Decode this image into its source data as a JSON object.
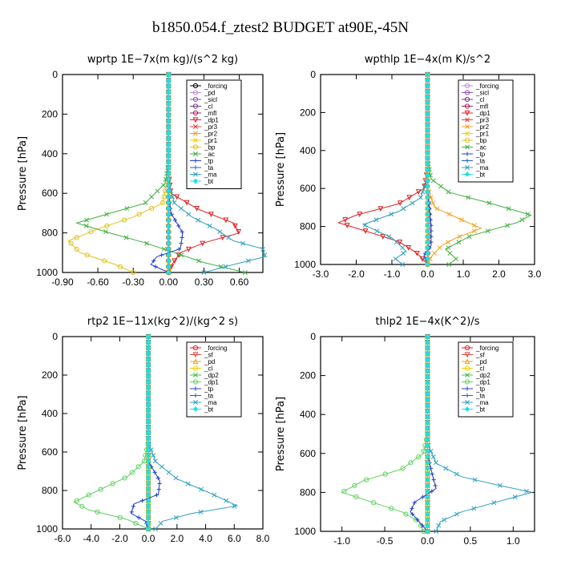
{
  "figure_title": "b1850.054.f_ztest2  BUDGET at90E,-45N",
  "chart_data": [
    {
      "type": "line",
      "title": "wprtp   1E−7x(m kg)/(s^2 kg)",
      "ylabel": "Pressure [hPa]",
      "ylim": [
        1000,
        0
      ],
      "yticks": [
        0,
        200,
        400,
        600,
        800,
        1000
      ],
      "xlim": [
        -0.9,
        0.8
      ],
      "xticks": [
        -0.9,
        -0.6,
        -0.3,
        0.0,
        0.3,
        0.6
      ],
      "xtick_labels": [
        "-0.90",
        "-0.60",
        "-0.30",
        "0.00",
        "0.30",
        "0.60"
      ],
      "legend_position": "top-right",
      "series": [
        {
          "name": "_forcing",
          "color": "#000000",
          "marker": "o",
          "p": [
            0,
            1000
          ],
          "v": [
            0,
            0
          ]
        },
        {
          "name": "_pd",
          "color": "#c08ad8",
          "marker": "o",
          "p": [
            0,
            1000
          ],
          "v": [
            0,
            0
          ]
        },
        {
          "name": "_sicl",
          "color": "#9050b0",
          "marker": "o",
          "p": [
            0,
            1000
          ],
          "v": [
            0,
            0
          ]
        },
        {
          "name": "_cl",
          "color": "#7a3b8f",
          "marker": "o",
          "p": [
            0,
            1000
          ],
          "v": [
            0,
            0
          ]
        },
        {
          "name": "_mfl",
          "color": "#a0205a",
          "marker": "o",
          "p": [
            0,
            1000
          ],
          "v": [
            0,
            0
          ]
        },
        {
          "name": "_dp1",
          "color": "#e02020",
          "marker": "v",
          "p": [
            0,
            500,
            600,
            680,
            750,
            800,
            850,
            900,
            950,
            1000
          ],
          "v": [
            0,
            0,
            0.02,
            0.25,
            0.55,
            0.6,
            0.3,
            0.1,
            0.04,
            0
          ]
        },
        {
          "name": "_pr3",
          "color": "#e04040",
          "marker": "x",
          "p": [
            0,
            1000
          ],
          "v": [
            0,
            0
          ]
        },
        {
          "name": "_pr2",
          "color": "#f0a020",
          "marker": "x",
          "p": [
            0,
            1000
          ],
          "v": [
            0,
            0
          ]
        },
        {
          "name": "_pr1",
          "color": "#f0d000",
          "marker": "x",
          "p": [
            0,
            1000
          ],
          "v": [
            0,
            0
          ]
        },
        {
          "name": "_bp",
          "color": "#e0c020",
          "marker": "o",
          "p": [
            0,
            500,
            650,
            720,
            780,
            840,
            900,
            960,
            1000
          ],
          "v": [
            0,
            0,
            -0.05,
            -0.3,
            -0.6,
            -0.85,
            -0.75,
            -0.45,
            -0.3
          ]
        },
        {
          "name": "_ac",
          "color": "#40b040",
          "marker": "x",
          "p": [
            0,
            450,
            550,
            650,
            710,
            750,
            800,
            850,
            900,
            950,
            1000
          ],
          "v": [
            0,
            0,
            -0.03,
            -0.2,
            -0.55,
            -0.78,
            -0.5,
            -0.2,
            0.05,
            0.3,
            0.65
          ]
        },
        {
          "name": "_tp",
          "color": "#2040d0",
          "marker": "+",
          "p": [
            0,
            600,
            700,
            800,
            880,
            920,
            960,
            1000
          ],
          "v": [
            0,
            0,
            0.02,
            0.12,
            0.1,
            -0.1,
            -0.15,
            0
          ]
        },
        {
          "name": "_ta",
          "color": "#2060c0",
          "marker": "+",
          "p": [
            0,
            1000
          ],
          "v": [
            0,
            0
          ]
        },
        {
          "name": "_ma",
          "color": "#30a0c0",
          "marker": "x",
          "p": [
            0,
            550,
            650,
            720,
            780,
            840,
            880,
            920,
            960,
            1000
          ],
          "v": [
            0,
            0,
            0.05,
            0.2,
            0.4,
            0.55,
            0.8,
            0.82,
            0.55,
            0.3
          ]
        },
        {
          "name": "_bt",
          "color": "#20e0e0",
          "marker": "d",
          "p": [
            0,
            1000
          ],
          "v": [
            0,
            0
          ]
        }
      ]
    },
    {
      "type": "line",
      "title": "wpthlp   1E−4x(m K)/s^2",
      "ylabel": "Pressure [hPa]",
      "ylim": [
        1000,
        0
      ],
      "yticks": [
        0,
        200,
        400,
        600,
        800,
        1000
      ],
      "xlim": [
        -3.0,
        3.0
      ],
      "xticks": [
        -3.0,
        -2.0,
        -1.0,
        0.0,
        1.0,
        2.0,
        3.0
      ],
      "xtick_labels": [
        "-3.0",
        "-2.0",
        "-1.0",
        "0.0",
        "1.0",
        "2.0",
        "3.0"
      ],
      "legend_position": "top-right",
      "series": [
        {
          "name": "_forcing",
          "color": "#c08ad8",
          "marker": "o",
          "p": [
            0,
            1000
          ],
          "v": [
            0,
            0
          ]
        },
        {
          "name": "_sicl",
          "color": "#9050b0",
          "marker": "o",
          "p": [
            0,
            1000
          ],
          "v": [
            0,
            0
          ]
        },
        {
          "name": "_cl",
          "color": "#7a3b8f",
          "marker": "o",
          "p": [
            0,
            600,
            800,
            1000
          ],
          "v": [
            0,
            0,
            0.05,
            0
          ]
        },
        {
          "name": "_mfl",
          "color": "#a0205a",
          "marker": "o",
          "p": [
            0,
            1000
          ],
          "v": [
            0,
            0
          ]
        },
        {
          "name": "_dp1",
          "color": "#e02020",
          "marker": "v",
          "p": [
            0,
            500,
            600,
            680,
            740,
            780,
            820,
            880,
            940,
            1000
          ],
          "v": [
            0,
            0,
            -0.1,
            -0.8,
            -2.0,
            -2.5,
            -1.8,
            -0.8,
            -0.3,
            0
          ]
        },
        {
          "name": "_pr3",
          "color": "#e04040",
          "marker": "x",
          "p": [
            0,
            1000
          ],
          "v": [
            0,
            0
          ]
        },
        {
          "name": "_pr2",
          "color": "#f0a020",
          "marker": "x",
          "p": [
            0,
            600,
            700,
            760,
            810,
            860,
            900,
            960,
            1000
          ],
          "v": [
            0,
            0,
            0.2,
            0.9,
            1.5,
            0.8,
            0.4,
            0.1,
            0
          ]
        },
        {
          "name": "_pr1",
          "color": "#f0d000",
          "marker": "x",
          "p": [
            0,
            1000
          ],
          "v": [
            0,
            0
          ]
        },
        {
          "name": "_bp",
          "color": "#e0c020",
          "marker": "o",
          "p": [
            0,
            1000
          ],
          "v": [
            0,
            0
          ]
        },
        {
          "name": "_ac",
          "color": "#40b040",
          "marker": "x",
          "p": [
            0,
            450,
            550,
            620,
            680,
            740,
            780,
            850,
            920,
            970,
            1000
          ],
          "v": [
            0,
            0,
            0.1,
            0.6,
            1.8,
            2.9,
            2.5,
            1.2,
            0.5,
            0.8,
            0.6
          ]
        },
        {
          "name": "_tp",
          "color": "#2040d0",
          "marker": "+",
          "p": [
            0,
            600,
            700,
            800,
            900,
            950,
            1000
          ],
          "v": [
            0,
            0,
            0.05,
            0.1,
            0.1,
            -0.1,
            0
          ]
        },
        {
          "name": "_ta",
          "color": "#2060c0",
          "marker": "+",
          "p": [
            0,
            1000
          ],
          "v": [
            0,
            0
          ]
        },
        {
          "name": "_ma",
          "color": "#30a0c0",
          "marker": "x",
          "p": [
            0,
            550,
            650,
            720,
            790,
            860,
            930,
            970,
            1000
          ],
          "v": [
            0,
            0,
            -0.2,
            -0.8,
            -1.8,
            -1.0,
            -0.6,
            -0.9,
            -0.7
          ]
        },
        {
          "name": "_bt",
          "color": "#20e0e0",
          "marker": "d",
          "p": [
            0,
            1000
          ],
          "v": [
            0,
            0
          ]
        }
      ]
    },
    {
      "type": "line",
      "title": "rtp2   1E−11x(kg^2)/(kg^2 s)",
      "ylabel": "Pressure [hPa]",
      "ylim": [
        1000,
        0
      ],
      "yticks": [
        0,
        200,
        400,
        600,
        800,
        1000
      ],
      "xlim": [
        -6.0,
        8.0
      ],
      "xticks": [
        -6.0,
        -4.0,
        -2.0,
        0.0,
        2.0,
        4.0,
        6.0,
        8.0
      ],
      "xtick_labels": [
        "-6.0",
        "-4.0",
        "-2.0",
        "0.0",
        "2.0",
        "4.0",
        "6.0",
        "8.0"
      ],
      "legend_position": "top-right",
      "series": [
        {
          "name": "_forcing",
          "color": "#e02020",
          "marker": "o",
          "p": [
            0,
            1000
          ],
          "v": [
            0,
            0
          ]
        },
        {
          "name": "_sf",
          "color": "#e04040",
          "marker": "v",
          "p": [
            0,
            1000
          ],
          "v": [
            0,
            0
          ]
        },
        {
          "name": "_pd",
          "color": "#f0a020",
          "marker": "^",
          "p": [
            0,
            1000
          ],
          "v": [
            0,
            0
          ]
        },
        {
          "name": "_cl",
          "color": "#f0d000",
          "marker": "o",
          "p": [
            0,
            1000
          ],
          "v": [
            0,
            0
          ]
        },
        {
          "name": "_dp2",
          "color": "#40c040",
          "marker": "x",
          "p": [
            0,
            1000
          ],
          "v": [
            0,
            0
          ]
        },
        {
          "name": "_dp1",
          "color": "#60d060",
          "marker": "o",
          "p": [
            0,
            550,
            650,
            730,
            800,
            860,
            900,
            950,
            1000
          ],
          "v": [
            0,
            0,
            -0.3,
            -1.5,
            -3.5,
            -5.2,
            -4.2,
            -1.5,
            0
          ]
        },
        {
          "name": "_tp",
          "color": "#2040d0",
          "marker": "+",
          "p": [
            0,
            650,
            750,
            820,
            870,
            920,
            960,
            1000
          ],
          "v": [
            0,
            0,
            0.8,
            0.7,
            -1.0,
            -1.2,
            -0.2,
            0
          ]
        },
        {
          "name": "_ta",
          "color": "#2060c0",
          "marker": "+",
          "p": [
            0,
            1000
          ],
          "v": [
            0,
            0
          ]
        },
        {
          "name": "_ma",
          "color": "#30a0c0",
          "marker": "x",
          "p": [
            0,
            550,
            650,
            740,
            820,
            880,
            920,
            960,
            1000
          ],
          "v": [
            0,
            0,
            0.5,
            2.0,
            4.5,
            6.2,
            3.0,
            1.0,
            0.5
          ]
        },
        {
          "name": "_bt",
          "color": "#20e0e0",
          "marker": "d",
          "p": [
            0,
            1000
          ],
          "v": [
            0,
            0
          ]
        }
      ]
    },
    {
      "type": "line",
      "title": "thlp2   1E−4x(K^2)/s",
      "ylabel": "Pressure [hPa]",
      "ylim": [
        1000,
        0
      ],
      "yticks": [
        0,
        200,
        400,
        600,
        800,
        1000
      ],
      "xlim": [
        -1.25,
        1.25
      ],
      "xticks": [
        -1.0,
        -0.5,
        0.0,
        0.5,
        1.0
      ],
      "xtick_labels": [
        "-1.0",
        "-0.5",
        "0.0",
        "0.5",
        "1.0"
      ],
      "legend_position": "top-right",
      "series": [
        {
          "name": "_forcing",
          "color": "#e02020",
          "marker": "o",
          "p": [
            0,
            1000
          ],
          "v": [
            0,
            0
          ]
        },
        {
          "name": "_sf",
          "color": "#e04040",
          "marker": "v",
          "p": [
            0,
            1000
          ],
          "v": [
            0,
            0
          ]
        },
        {
          "name": "_pd",
          "color": "#f0a020",
          "marker": "^",
          "p": [
            0,
            1000
          ],
          "v": [
            0,
            0
          ]
        },
        {
          "name": "_cl",
          "color": "#f0d000",
          "marker": "o",
          "p": [
            0,
            1000
          ],
          "v": [
            0,
            0
          ]
        },
        {
          "name": "_dp2",
          "color": "#40c040",
          "marker": "x",
          "p": [
            0,
            1000
          ],
          "v": [
            0,
            0
          ]
        },
        {
          "name": "_dp1",
          "color": "#60d060",
          "marker": "o",
          "p": [
            0,
            500,
            600,
            680,
            740,
            800,
            850,
            900,
            950,
            1000
          ],
          "v": [
            0,
            0,
            -0.05,
            -0.3,
            -0.75,
            -1.0,
            -0.65,
            -0.3,
            -0.1,
            -0.05
          ]
        },
        {
          "name": "_tp",
          "color": "#2040d0",
          "marker": "+",
          "p": [
            0,
            600,
            700,
            780,
            850,
            900,
            950,
            1000
          ],
          "v": [
            0,
            0,
            0.05,
            0.1,
            -0.15,
            -0.2,
            -0.1,
            0
          ]
        },
        {
          "name": "_ta",
          "color": "#2060c0",
          "marker": "+",
          "p": [
            0,
            1000
          ],
          "v": [
            0,
            0
          ]
        },
        {
          "name": "_ma",
          "color": "#30a0c0",
          "marker": "x",
          "p": [
            0,
            550,
            650,
            720,
            770,
            800,
            850,
            900,
            950,
            1000
          ],
          "v": [
            0,
            0,
            0.1,
            0.4,
            0.9,
            1.22,
            0.8,
            0.4,
            0.15,
            0.1
          ]
        },
        {
          "name": "_bt",
          "color": "#20e0e0",
          "marker": "d",
          "p": [
            0,
            1000
          ],
          "v": [
            0,
            0
          ]
        }
      ]
    }
  ]
}
